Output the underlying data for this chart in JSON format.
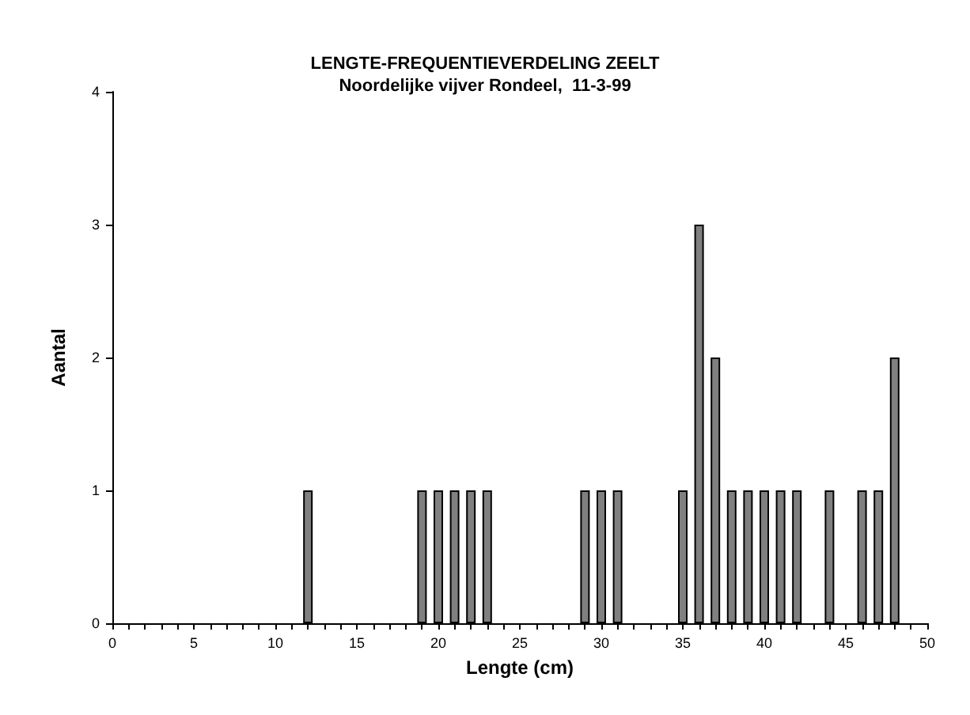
{
  "chart_data": {
    "type": "bar",
    "title": "LENGTE-FREQUENTIEVERDELING ZEELT",
    "subtitle": "Noordelijke vijver Rondeel,  11-3-99",
    "xlabel": "Lengte (cm)",
    "ylabel": "Aantal",
    "x": [
      12,
      19,
      20,
      21,
      22,
      23,
      29,
      30,
      31,
      35,
      36,
      37,
      38,
      39,
      40,
      41,
      42,
      44,
      46,
      47,
      48
    ],
    "values": [
      1,
      1,
      1,
      1,
      1,
      1,
      1,
      1,
      1,
      1,
      3,
      2,
      1,
      1,
      1,
      1,
      1,
      1,
      1,
      1,
      2
    ],
    "color": "#808080",
    "xlim": [
      0,
      50
    ],
    "xticks": [
      0,
      {
        "value": 1,
        "label": null
      },
      {
        "value": 2,
        "label": null
      },
      {
        "value": 3,
        "label": null
      },
      {
        "value": 4,
        "label": null
      },
      5,
      {
        "value": 6,
        "label": null
      },
      {
        "value": 7,
        "label": null
      },
      {
        "value": 8,
        "label": null
      },
      {
        "value": 9,
        "label": null
      },
      10,
      {
        "value": 11,
        "label": null
      },
      {
        "value": 12,
        "label": null
      },
      {
        "value": 13,
        "label": null
      },
      {
        "value": 14,
        "label": null
      },
      15,
      {
        "value": 16,
        "label": null
      },
      {
        "value": 17,
        "label": null
      },
      {
        "value": 18,
        "label": null
      },
      {
        "value": 19,
        "label": null
      },
      20,
      {
        "value": 21,
        "label": null
      },
      {
        "value": 22,
        "label": null
      },
      {
        "value": 23,
        "label": null
      },
      {
        "value": 24,
        "label": null
      },
      25,
      {
        "value": 26,
        "label": null
      },
      {
        "value": 27,
        "label": null
      },
      {
        "value": 28,
        "label": null
      },
      {
        "value": 29,
        "label": null
      },
      30,
      {
        "value": 31,
        "label": null
      },
      {
        "value": 32,
        "label": null
      },
      {
        "value": 33,
        "label": null
      },
      {
        "value": 34,
        "label": null
      },
      35,
      {
        "value": 36,
        "label": null
      },
      {
        "value": 37,
        "label": null
      },
      {
        "value": 38,
        "label": null
      },
      {
        "value": 39,
        "label": null
      },
      40,
      {
        "value": 41,
        "label": null
      },
      {
        "value": 42,
        "label": null
      },
      {
        "value": 43,
        "label": null
      },
      {
        "value": 44,
        "label": null
      },
      45,
      {
        "value": 46,
        "label": null
      },
      {
        "value": 47,
        "label": null
      },
      {
        "value": 48,
        "label": null
      },
      {
        "value": 49,
        "label": null
      },
      50
    ],
    "ylim": [
      0,
      4
    ],
    "yticks": [
      0,
      1,
      2,
      3,
      4
    ],
    "grid": false
  }
}
